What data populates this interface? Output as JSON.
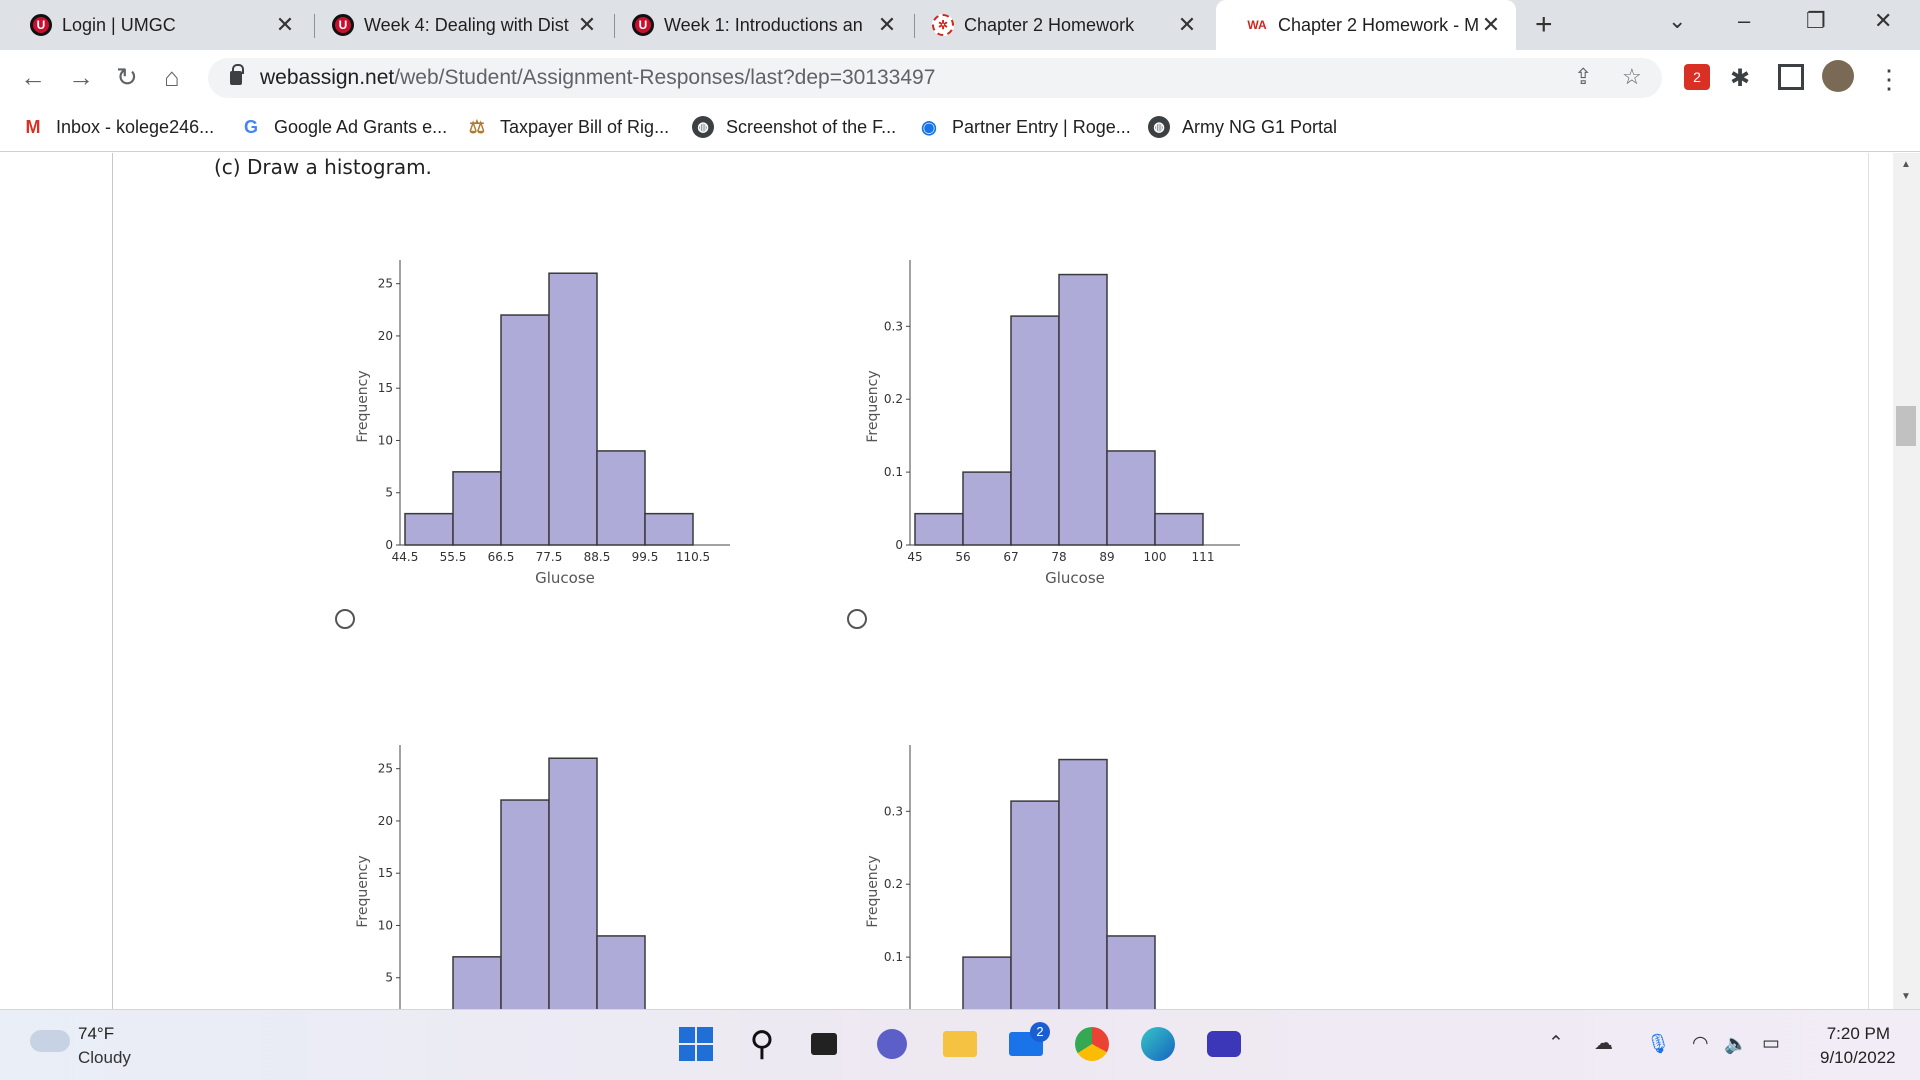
{
  "tabs": [
    {
      "title": "Login | UMGC",
      "icon": "umgc-icon"
    },
    {
      "title": "Week 4: Dealing with Dist",
      "icon": "umgc-icon"
    },
    {
      "title": "Week 1: Introductions an",
      "icon": "umgc-icon"
    },
    {
      "title": "Chapter 2 Homework",
      "icon": "react-icon"
    },
    {
      "title": "Chapter 2 Homework - M",
      "icon": "webassign-icon",
      "active": true
    }
  ],
  "address": {
    "host": "webassign.net",
    "path": "/web/Student/Assignment-Responses/last?dep=30133497"
  },
  "extension_badge": "2",
  "bookmarks": [
    {
      "label": "Inbox - kolege246...",
      "icon": "gmail-icon"
    },
    {
      "label": "Google Ad Grants e...",
      "icon": "google-icon"
    },
    {
      "label": "Taxpayer Bill of Rig...",
      "icon": "taxpayer-icon"
    },
    {
      "label": "Screenshot of the F...",
      "icon": "globe-icon"
    },
    {
      "label": "Partner Entry | Roge...",
      "icon": "partner-icon"
    },
    {
      "label": "Army NG G1 Portal",
      "icon": "globe-icon"
    }
  ],
  "question": "(c) Draw a histogram.",
  "chart_data": [
    {
      "type": "bar",
      "ylabel": "Frequency",
      "xlabel": "Glucose",
      "xticks": [
        "44.5",
        "55.5",
        "66.5",
        "77.5",
        "88.5",
        "99.5",
        "110.5"
      ],
      "yticks": [
        "0",
        "5",
        "10",
        "15",
        "20",
        "25"
      ],
      "ylim": [
        0,
        26.5
      ],
      "bin_edges": [
        44.5,
        55.5,
        66.5,
        77.5,
        88.5,
        99.5,
        110.5
      ],
      "values": [
        3,
        7,
        22,
        26,
        9,
        3
      ]
    },
    {
      "type": "bar",
      "ylabel": "Frequency",
      "xlabel": "Glucose",
      "xticks": [
        "45",
        "56",
        "67",
        "78",
        "89",
        "100",
        "111"
      ],
      "yticks": [
        "0",
        "0.1",
        "0.2",
        "0.3"
      ],
      "ylim": [
        0,
        0.38
      ],
      "bin_edges": [
        45,
        56,
        67,
        78,
        89,
        100,
        111
      ],
      "values": [
        0.043,
        0.1,
        0.314,
        0.371,
        0.129,
        0.043
      ]
    },
    {
      "type": "bar",
      "ylabel": "Frequency",
      "xlabel": "",
      "yticks": [
        "5",
        "10",
        "15",
        "20",
        "25"
      ],
      "ylim": [
        0,
        26.5
      ],
      "values": [
        7,
        22,
        26,
        9
      ]
    },
    {
      "type": "bar",
      "ylabel": "Frequency",
      "xlabel": "",
      "yticks": [
        "0.1",
        "0.2",
        "0.3"
      ],
      "ylim": [
        0,
        0.38
      ],
      "values": [
        0.1,
        0.314,
        0.371,
        0.129
      ]
    }
  ],
  "colors": {
    "bar_fill": "#afabd8",
    "bar_stroke": "#3a3a3a"
  },
  "weather": {
    "temp": "74°F",
    "desc": "Cloudy"
  },
  "mail_badge": "2",
  "clock": {
    "time": "7:20 PM",
    "date": "9/10/2022"
  }
}
